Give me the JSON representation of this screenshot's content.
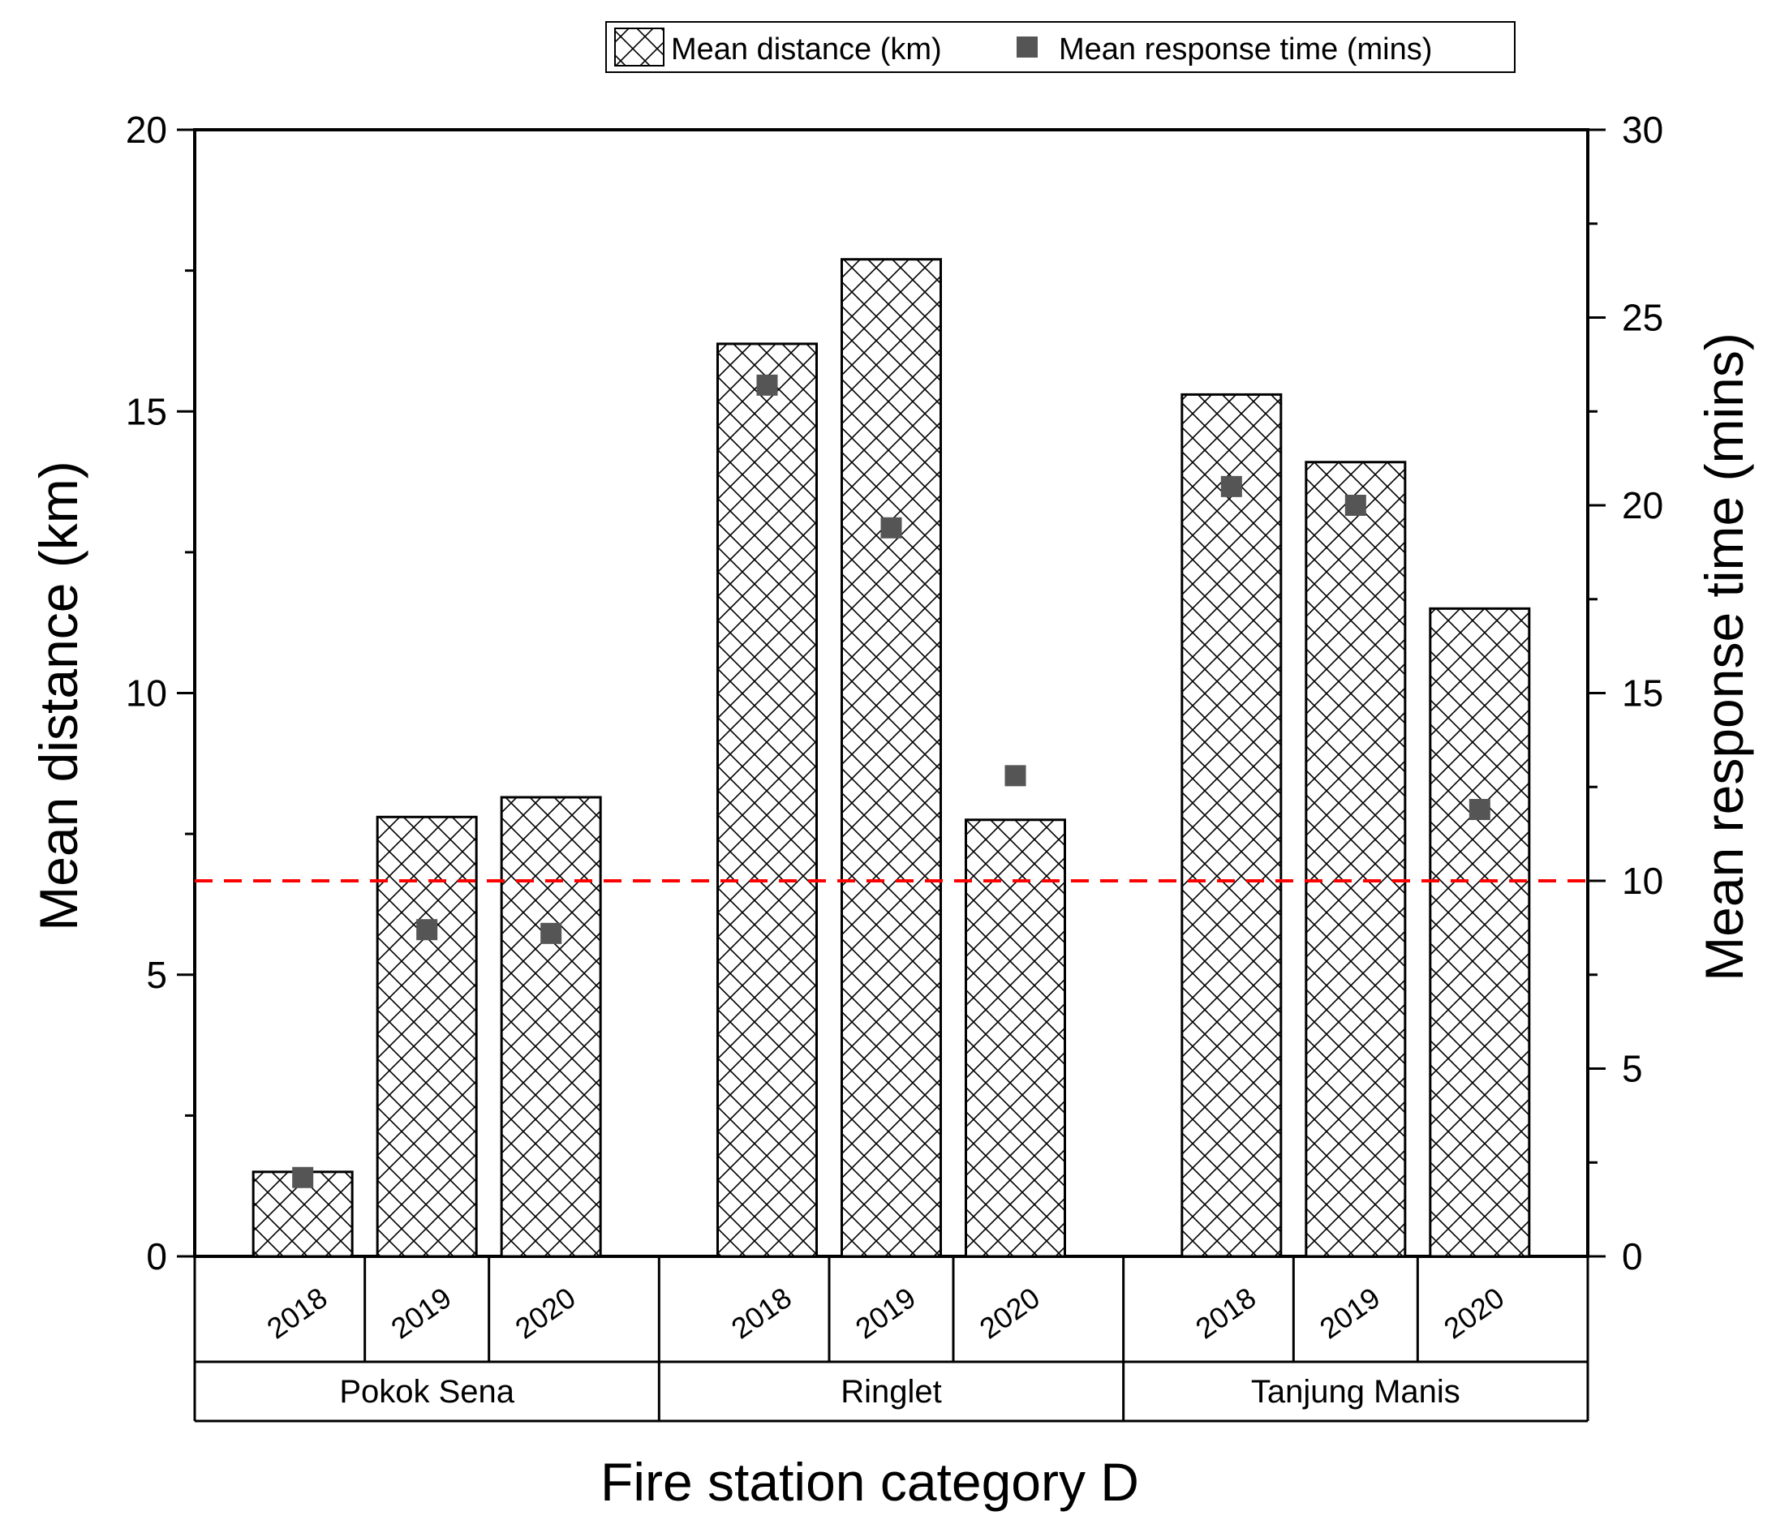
{
  "chart_data": {
    "type": "bar",
    "title": "",
    "xlabel": "Fire station category D",
    "ylabel_left": "Mean distance (km)",
    "ylabel_right": "Mean response time (mins)",
    "ylim_left": [
      0,
      20
    ],
    "ylim_right": [
      0,
      30
    ],
    "left_ticks": [
      "0",
      "5",
      "10",
      "15",
      "20"
    ],
    "right_ticks": [
      "0",
      "5",
      "10",
      "15",
      "20",
      "25",
      "30"
    ],
    "groups": [
      "Pokok Sena",
      "Ringlet",
      "Tanjung Manis"
    ],
    "categories": [
      "2018",
      "2019",
      "2020"
    ],
    "series": [
      {
        "name": "Mean distance (km)",
        "type": "bar",
        "axis": "left",
        "values": [
          [
            1.5,
            7.8,
            8.15
          ],
          [
            16.2,
            17.7,
            7.75
          ],
          [
            15.3,
            14.1,
            11.5
          ]
        ]
      },
      {
        "name": "Mean response time (mins)",
        "type": "scatter",
        "axis": "right",
        "values": [
          [
            2.1,
            8.7,
            8.6
          ],
          [
            23.2,
            19.4,
            12.8
          ],
          [
            20.5,
            20.0,
            11.9
          ]
        ]
      }
    ],
    "reference_line": {
      "axis": "right",
      "value": 10,
      "color": "#ff0000",
      "style": "dashed"
    },
    "legend_position": "top",
    "colors": {
      "bar_fill": "#ffffff",
      "bar_hatch": "#000000",
      "marker": "#555555"
    },
    "grid": false
  }
}
